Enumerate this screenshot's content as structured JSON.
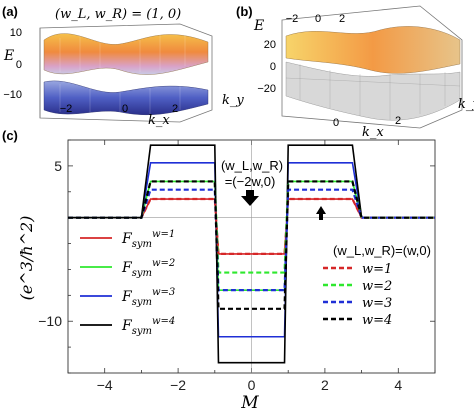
{
  "panel_a": {
    "label": "(a)",
    "title": "(w_L, w_R) = (1, 0)",
    "z_label": "E",
    "x_label": "k_x",
    "y_label": "k_y",
    "z_ticks": [
      "10",
      "0",
      "−10"
    ],
    "x_ticks": [
      "−2",
      "0",
      "2"
    ]
  },
  "panel_b": {
    "label": "(b)",
    "z_label": "E",
    "x_label": "k_x",
    "y_label": "k_y",
    "z_ticks": [
      "20",
      "0",
      "−20"
    ],
    "x_ticks": [
      "0",
      "2"
    ],
    "y_ticks": [
      "−2",
      "0",
      "2"
    ]
  },
  "panel_c": {
    "label": "(c)",
    "annotation_left": {
      "line1": "(w_L,w_R)",
      "line2": "=(−2w,0)"
    },
    "annotation_right": "(w_L,w_R)=(w,0)",
    "legend_solid": [
      "F_sym^{w=1}",
      "F_sym^{w=2}",
      "F_sym^{w=3}",
      "F_sym^{w=4}"
    ],
    "legend_dashed": [
      "w=1",
      "w=2",
      "w=3",
      "w=4"
    ]
  },
  "colors": {
    "w1": "#d62728",
    "w2": "#2ee82e",
    "w3": "#1f2fd6",
    "w4": "#000000",
    "axis": "#333333"
  },
  "chart_data": {
    "type": "line",
    "xlabel": "M",
    "ylabel": "(e^3/ħ^2)",
    "xlim": [
      -5,
      5
    ],
    "ylim": [
      -15,
      7.5
    ],
    "x_ticks": [
      -4,
      -2,
      0,
      2,
      4
    ],
    "y_ticks": [
      -10,
      5
    ],
    "series": [
      {
        "name": "F_sym^{w=1}",
        "style": "solid",
        "color": "#d62728",
        "x": [
          -5,
          -3,
          -2.75,
          -1,
          -0.9,
          0.9,
          1,
          2.75,
          3,
          5
        ],
        "y": [
          0,
          0,
          1.8,
          1.8,
          -3.5,
          -3.5,
          1.8,
          1.8,
          0,
          0
        ]
      },
      {
        "name": "F_sym^{w=2}",
        "style": "solid",
        "color": "#2ee82e",
        "x": [
          -5,
          -3,
          -2.75,
          -1,
          -0.9,
          0.9,
          1,
          2.75,
          3,
          5
        ],
        "y": [
          0,
          0,
          3.5,
          3.5,
          -7,
          -7,
          3.5,
          3.5,
          0,
          0
        ]
      },
      {
        "name": "F_sym^{w=3}",
        "style": "solid",
        "color": "#1f2fd6",
        "x": [
          -5,
          -3,
          -2.75,
          -1,
          -0.9,
          0.9,
          1,
          2.75,
          3,
          5
        ],
        "y": [
          0,
          0,
          5.3,
          5.3,
          -11.5,
          -11.5,
          5.3,
          5.3,
          0,
          0
        ]
      },
      {
        "name": "F_sym^{w=4}",
        "style": "solid",
        "color": "#000000",
        "x": [
          -5,
          -3,
          -2.75,
          -1,
          -0.9,
          0.9,
          1,
          2.75,
          3,
          5
        ],
        "y": [
          0,
          0,
          7,
          7,
          -14,
          -14,
          7,
          7,
          0,
          0
        ]
      },
      {
        "name": "w=1",
        "style": "dashed",
        "color": "#d62728",
        "x": [
          -5,
          -3,
          -2.75,
          -1,
          -0.9,
          0.9,
          1,
          2.75,
          3,
          5
        ],
        "y": [
          0,
          0,
          1.8,
          1.8,
          -3.5,
          -3.5,
          1.8,
          1.8,
          0,
          0
        ]
      },
      {
        "name": "w=2",
        "style": "dashed",
        "color": "#2ee82e",
        "x": [
          -5,
          -3,
          -2.75,
          -1,
          -0.9,
          0.9,
          1,
          2.75,
          3,
          5
        ],
        "y": [
          0,
          0,
          3.5,
          3.5,
          -5.3,
          -5.3,
          3.5,
          3.5,
          0,
          0
        ]
      },
      {
        "name": "w=3",
        "style": "dashed",
        "color": "#1f2fd6",
        "x": [
          -5,
          -3,
          -2.75,
          -1,
          -0.9,
          0.9,
          1,
          2.75,
          3,
          5
        ],
        "y": [
          0,
          0,
          2.7,
          2.7,
          -7,
          -7,
          2.7,
          2.7,
          0,
          0
        ]
      },
      {
        "name": "w=4",
        "style": "dashed",
        "color": "#000000",
        "x": [
          -5,
          -3,
          -2.75,
          -1,
          -0.9,
          0.9,
          1,
          2.75,
          3,
          5
        ],
        "y": [
          0,
          0,
          3.5,
          3.5,
          -8.8,
          -8.8,
          3.5,
          3.5,
          0,
          0
        ]
      }
    ]
  }
}
